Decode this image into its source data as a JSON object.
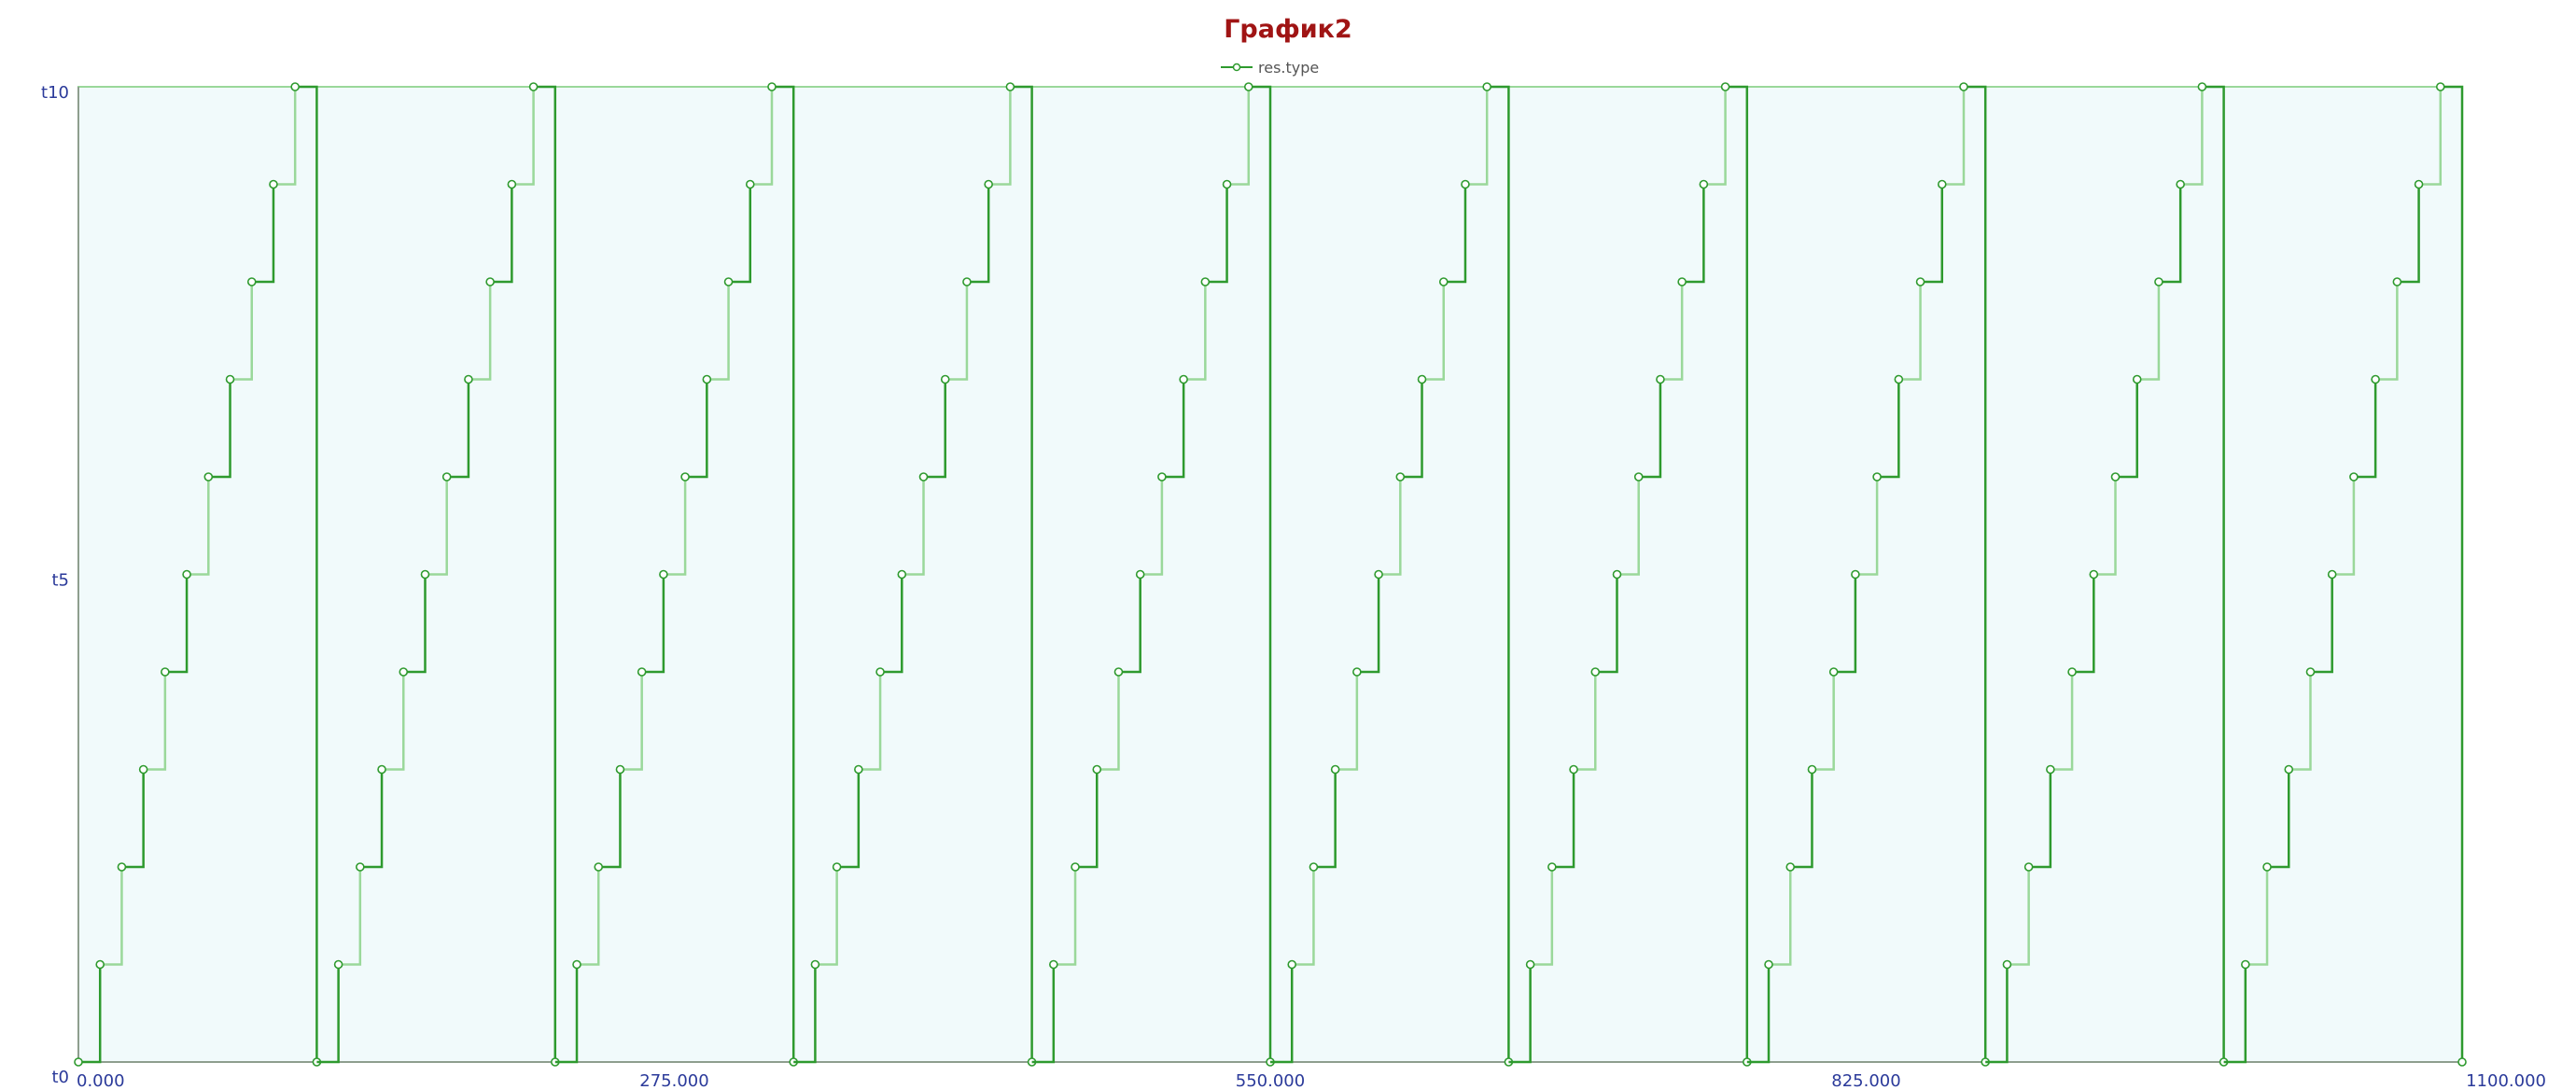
{
  "chart_data": {
    "type": "line",
    "title": "График2",
    "xlabel": "",
    "ylabel": "",
    "xlim": [
      0,
      1100
    ],
    "x_ticks": [
      "0.000",
      "275.000",
      "550.000",
      "825.000",
      "1100.000"
    ],
    "y_ticks": [
      "t0",
      "t5",
      "t10"
    ],
    "y_levels": 10,
    "grid": false,
    "legend_position": "top-center",
    "series": [
      {
        "name": "res.type",
        "color": "#2e9a2e",
        "light_color": "#9ad89a",
        "background": "#f1fafb",
        "cycle_length": 110,
        "cycles": 10,
        "steps": [
          {
            "x": 0,
            "y": 0
          },
          {
            "x": 10,
            "y": 1
          },
          {
            "x": 20,
            "y": 2
          },
          {
            "x": 30,
            "y": 3
          },
          {
            "x": 40,
            "y": 4
          },
          {
            "x": 50,
            "y": 5
          },
          {
            "x": 60,
            "y": 6
          },
          {
            "x": 70,
            "y": 7
          },
          {
            "x": 80,
            "y": 8
          },
          {
            "x": 90,
            "y": 9
          },
          {
            "x": 100,
            "y": 10
          },
          {
            "x": 110,
            "y": 0
          }
        ]
      }
    ]
  }
}
